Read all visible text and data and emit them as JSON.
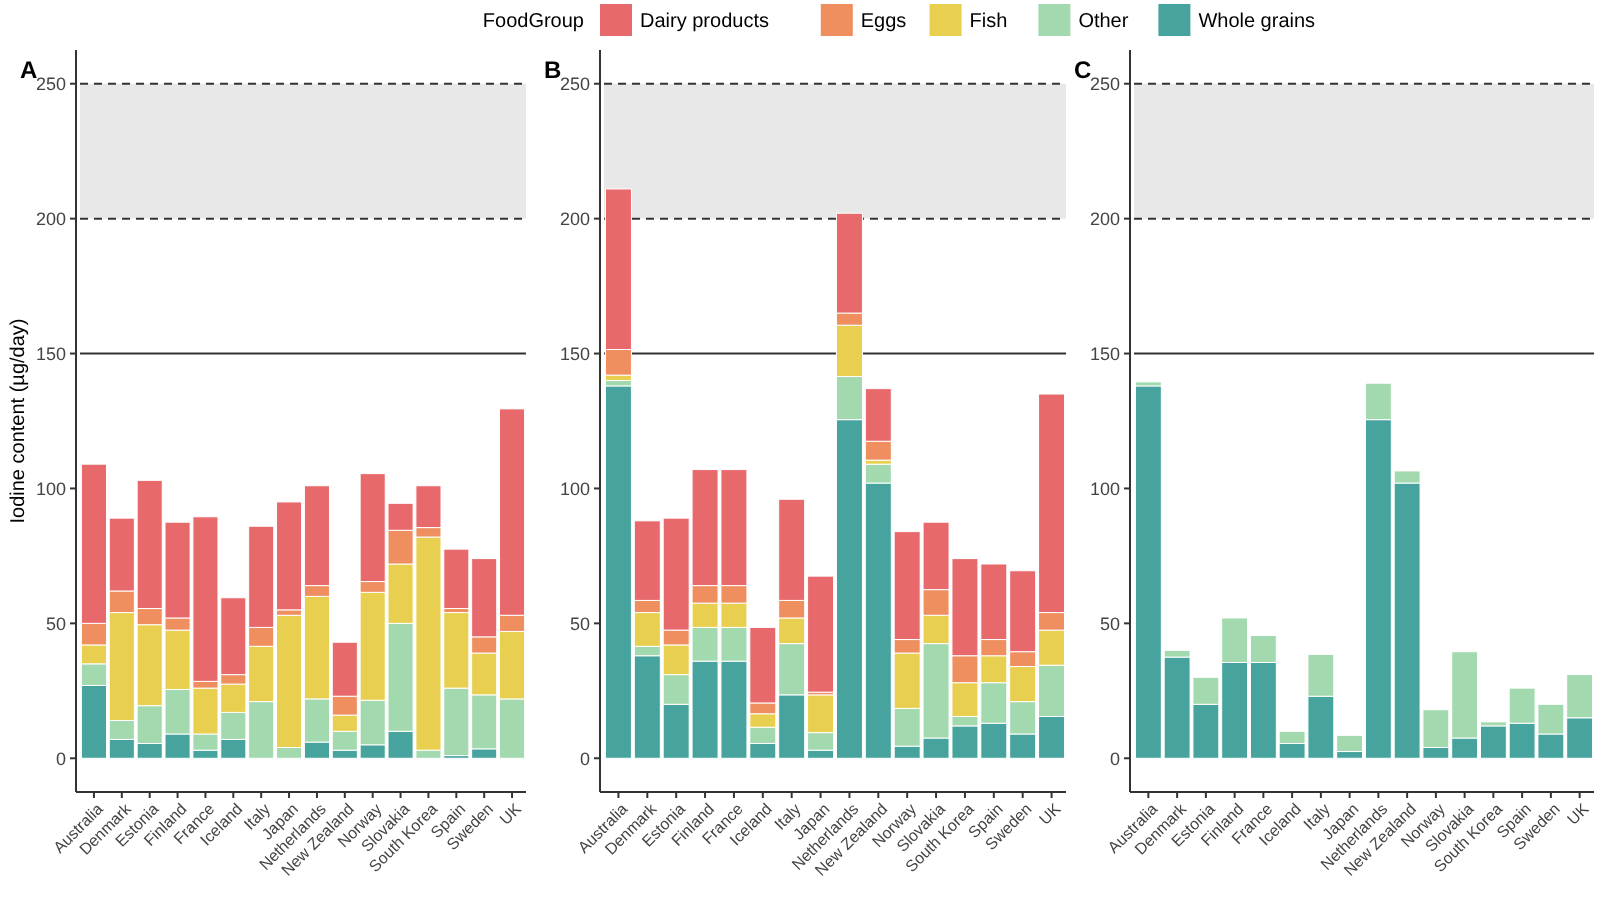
{
  "chart_data": [
    {
      "type": "bar",
      "title": "A",
      "ylabel": "Iodine content (µg/day)",
      "legend_title": "FoodGroup",
      "legend": "top",
      "stacked": true,
      "categories": [
        "Australia",
        "Denmark",
        "Estonia",
        "Finland",
        "France",
        "Iceland",
        "Italy",
        "Japan",
        "Netherlands",
        "New Zealand",
        "Norway",
        "Slovakia",
        "South Korea",
        "Spain",
        "Sweden",
        "UK"
      ],
      "ylim": [
        -12.5,
        262.5
      ],
      "yticks": [
        0,
        50,
        100,
        150,
        200,
        250
      ],
      "ref_lines": [
        {
          "axis": "y",
          "value": 150,
          "line_style": "solid"
        },
        {
          "axis": "y",
          "value": 200,
          "line_style": "dashed"
        },
        {
          "axis": "y",
          "value": 250,
          "line_style": "dashed"
        }
      ],
      "bands": [
        {
          "axis": "y",
          "from": 200,
          "to": 250,
          "color": "#e8e8e8"
        }
      ],
      "series": [
        {
          "name": "Whole grains",
          "color": "#47a39e",
          "values": [
            27,
            7,
            5.5,
            9,
            3,
            7,
            0,
            0,
            6,
            3,
            5,
            10,
            0,
            1,
            3.5,
            0
          ]
        },
        {
          "name": "Other",
          "color": "#a2d9ae",
          "values": [
            8,
            7,
            14,
            16.5,
            6,
            10,
            21,
            4,
            16,
            7,
            16.5,
            40,
            3,
            25,
            20,
            22
          ]
        },
        {
          "name": "Fish",
          "color": "#e8cf4f",
          "values": [
            7,
            40,
            30,
            22,
            17,
            10.5,
            20.5,
            49,
            38,
            6,
            40,
            22,
            79,
            28,
            15.5,
            25
          ]
        },
        {
          "name": "Eggs",
          "color": "#ef8e5f",
          "values": [
            8,
            8,
            6,
            4.5,
            2.5,
            3.5,
            7,
            2,
            4,
            7,
            4,
            12.5,
            3.5,
            1.5,
            6,
            6
          ]
        },
        {
          "name": "Dairy products",
          "color": "#e8696b",
          "values": [
            59,
            27,
            47.5,
            35.5,
            61,
            28.5,
            37.5,
            40,
            37,
            20,
            40,
            10,
            15.5,
            22,
            29,
            76.5
          ]
        }
      ]
    },
    {
      "type": "bar",
      "title": "B",
      "stacked": true,
      "categories": [
        "Australia",
        "Denmark",
        "Estonia",
        "Finland",
        "France",
        "Iceland",
        "Italy",
        "Japan",
        "Netherlands",
        "New Zealand",
        "Norway",
        "Slovakia",
        "South Korea",
        "Spain",
        "Sweden",
        "UK"
      ],
      "ylim": [
        -12.5,
        262.5
      ],
      "yticks": [
        0,
        50,
        100,
        150,
        200,
        250
      ],
      "ref_lines": [
        {
          "axis": "y",
          "value": 150,
          "line_style": "solid"
        },
        {
          "axis": "y",
          "value": 200,
          "line_style": "dashed"
        },
        {
          "axis": "y",
          "value": 250,
          "line_style": "dashed"
        }
      ],
      "bands": [
        {
          "axis": "y",
          "from": 200,
          "to": 250,
          "color": "#e8e8e8"
        }
      ],
      "series": [
        {
          "name": "Whole grains",
          "color": "#47a39e",
          "values": [
            138,
            38,
            20,
            36,
            36,
            5.5,
            23.5,
            3,
            125.5,
            102,
            4.5,
            7.5,
            12,
            13,
            9,
            15.5
          ]
        },
        {
          "name": "Other",
          "color": "#a2d9ae",
          "values": [
            2,
            3.5,
            11,
            12.5,
            12.5,
            6,
            19,
            6.5,
            16,
            7,
            14,
            35,
            3.5,
            15,
            12,
            19
          ]
        },
        {
          "name": "Fish",
          "color": "#e8cf4f",
          "values": [
            2,
            12.5,
            11,
            9,
            9,
            5,
            9.5,
            14,
            19,
            1.5,
            20.5,
            10.5,
            12.5,
            10,
            13,
            13
          ]
        },
        {
          "name": "Eggs",
          "color": "#ef8e5f",
          "values": [
            9.5,
            4.5,
            5.5,
            6.5,
            6.5,
            4,
            6.5,
            1,
            4.5,
            7,
            5,
            9.5,
            10,
            6,
            5.5,
            6.5
          ]
        },
        {
          "name": "Dairy products",
          "color": "#e8696b",
          "values": [
            59.5,
            29.5,
            41.5,
            43,
            43,
            28,
            37.5,
            43,
            37,
            19.5,
            40,
            25,
            36,
            28,
            30,
            81
          ]
        }
      ]
    },
    {
      "type": "bar",
      "title": "C",
      "stacked": true,
      "categories": [
        "Australia",
        "Denmark",
        "Estonia",
        "Finland",
        "France",
        "Iceland",
        "Italy",
        "Japan",
        "Netherlands",
        "New Zealand",
        "Norway",
        "Slovakia",
        "South Korea",
        "Spain",
        "Sweden",
        "UK"
      ],
      "ylim": [
        -12.5,
        262.5
      ],
      "yticks": [
        0,
        50,
        100,
        150,
        200,
        250
      ],
      "ref_lines": [
        {
          "axis": "y",
          "value": 150,
          "line_style": "solid"
        },
        {
          "axis": "y",
          "value": 200,
          "line_style": "dashed"
        },
        {
          "axis": "y",
          "value": 250,
          "line_style": "dashed"
        }
      ],
      "bands": [
        {
          "axis": "y",
          "from": 200,
          "to": 250,
          "color": "#e8e8e8"
        }
      ],
      "series": [
        {
          "name": "Whole grains",
          "color": "#47a39e",
          "values": [
            138,
            37.5,
            20,
            35.5,
            35.5,
            5.5,
            23,
            2.5,
            125.5,
            102,
            4,
            7.5,
            12,
            13,
            9,
            15
          ]
        },
        {
          "name": "Other",
          "color": "#a2d9ae",
          "values": [
            1.5,
            2.5,
            10,
            16.5,
            10,
            4.5,
            15.5,
            6,
            13.5,
            4.5,
            14,
            32,
            1.5,
            13,
            11,
            16
          ]
        }
      ]
    }
  ]
}
